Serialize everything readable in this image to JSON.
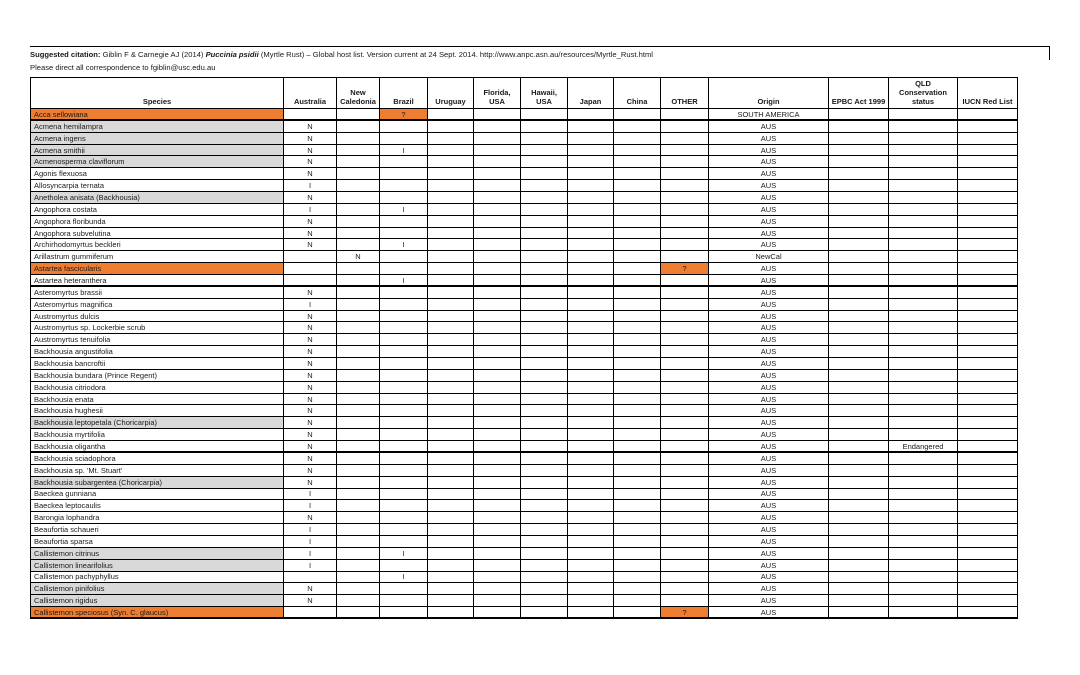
{
  "document": {
    "citation": {
      "prefix": "Suggested citation:",
      "authors": " Giblin F & Carnegie AJ (2014) ",
      "pathogen_name": "Puccinia psidii",
      "rest": " (Myrtle Rust) – Global host list. Version current at 24 Sept. 2014. http://www.anpc.asn.au/resources/Myrtle_Rust.html",
      "correspondence": "Please direct all correspondence to fgiblin@usc.edu.au"
    }
  },
  "colors": {
    "highlight_orange": "#ED7D31",
    "highlight_gray": "#D9D9D9"
  },
  "table": {
    "columns": [
      {
        "key": "species",
        "label": "Species"
      },
      {
        "key": "australia",
        "label": "Australia"
      },
      {
        "key": "new_caledonia",
        "label": "New Caledonia"
      },
      {
        "key": "brazil",
        "label": "Brazil"
      },
      {
        "key": "uruguay",
        "label": "Uruguay"
      },
      {
        "key": "florida_usa",
        "label": "Florida, USA"
      },
      {
        "key": "hawaii_usa",
        "label": "Hawaii, USA"
      },
      {
        "key": "japan",
        "label": "Japan"
      },
      {
        "key": "china",
        "label": "China"
      },
      {
        "key": "other",
        "label": "OTHER"
      },
      {
        "key": "origin",
        "label": "Origin"
      },
      {
        "key": "epbc",
        "label": "EPBC Act 1999"
      },
      {
        "key": "qld",
        "label": "QLD Conservation status"
      },
      {
        "key": "iucn",
        "label": "IUCN Red List"
      }
    ],
    "value_keys": [
      "australia",
      "new_caledonia",
      "brazil",
      "uruguay",
      "florida_usa",
      "hawaii_usa",
      "japan",
      "china",
      "other",
      "origin",
      "epbc",
      "qld",
      "iucn"
    ],
    "rows": [
      {
        "species": "Acca sellowiana",
        "bg": "orange",
        "values": {
          "brazil": "?",
          "origin": "SOUTH AMERICA"
        },
        "orange_cells": [
          "brazil"
        ],
        "thick_bottom": true
      },
      {
        "species": "Acmena hemilampra",
        "bg": "gray",
        "values": {
          "australia": "N",
          "origin": "AUS"
        }
      },
      {
        "species": "Acmena ingens",
        "bg": "gray",
        "values": {
          "australia": "N",
          "origin": "AUS"
        }
      },
      {
        "species": "Acmena smithii",
        "bg": "gray",
        "values": {
          "australia": "N",
          "brazil": "I",
          "origin": "AUS"
        }
      },
      {
        "species": "Acmenosperma claviflorum",
        "bg": "gray",
        "values": {
          "australia": "N",
          "origin": "AUS"
        }
      },
      {
        "species": "Agonis flexuosa",
        "bg": "white",
        "values": {
          "australia": "N",
          "origin": "AUS"
        }
      },
      {
        "species": "Allosyncarpia ternata",
        "bg": "white",
        "values": {
          "australia": "I",
          "origin": "AUS"
        }
      },
      {
        "species": "Anetholea anisata (Backhousia)",
        "bg": "gray",
        "values": {
          "australia": "N",
          "origin": "AUS"
        }
      },
      {
        "species": "Angophora costata",
        "bg": "white",
        "values": {
          "australia": "I",
          "brazil": "I",
          "origin": "AUS"
        }
      },
      {
        "species": "Angophora floribunda",
        "bg": "white",
        "values": {
          "australia": "N",
          "origin": "AUS"
        }
      },
      {
        "species": "Angophora subvelutina",
        "bg": "white",
        "values": {
          "australia": "N",
          "origin": "AUS"
        }
      },
      {
        "species": "Archirhodomyrtus beckleri",
        "bg": "white",
        "values": {
          "australia": "N",
          "brazil": "I",
          "origin": "AUS"
        }
      },
      {
        "species": "Arillastrum gummiferum",
        "bg": "white",
        "values": {
          "new_caledonia": "N",
          "origin": "NewCal"
        }
      },
      {
        "species": "Astartea fascicularis",
        "bg": "orange",
        "values": {
          "other": "?",
          "origin": "AUS"
        },
        "orange_cells": [
          "other"
        ]
      },
      {
        "species": "Astartea heteranthera",
        "bg": "white",
        "values": {
          "brazil": "I",
          "origin": "AUS"
        },
        "thick_bottom": true
      },
      {
        "species": "Asteromyrtus brassii",
        "bg": "white",
        "values": {
          "australia": "N",
          "origin": "AUS"
        }
      },
      {
        "species": "Asteromyrtus magnifica",
        "bg": "white",
        "values": {
          "australia": "I",
          "origin": "AUS"
        }
      },
      {
        "species": "Austromyrtus dulcis",
        "bg": "white",
        "values": {
          "australia": "N",
          "origin": "AUS"
        }
      },
      {
        "species": "Austromyrtus sp. Lockerbie scrub",
        "bg": "white",
        "values": {
          "australia": "N",
          "origin": "AUS"
        }
      },
      {
        "species": "Austromyrtus tenuifolia",
        "bg": "white",
        "values": {
          "australia": "N",
          "origin": "AUS"
        }
      },
      {
        "species": "Backhousia angustifolia",
        "bg": "white",
        "values": {
          "australia": "N",
          "origin": "AUS"
        }
      },
      {
        "species": "Backhousia bancroftii",
        "bg": "white",
        "values": {
          "australia": "N",
          "origin": "AUS"
        }
      },
      {
        "species": "Backhousia bundara (Prince Regent)",
        "bg": "white",
        "values": {
          "australia": "N",
          "origin": "AUS"
        }
      },
      {
        "species": "Backhousia citriodora",
        "bg": "white",
        "values": {
          "australia": "N",
          "origin": "AUS"
        }
      },
      {
        "species": "Backhousia enata",
        "bg": "white",
        "values": {
          "australia": "N",
          "origin": "AUS"
        }
      },
      {
        "species": "Backhousia hughesii",
        "bg": "white",
        "values": {
          "australia": "N",
          "origin": "AUS"
        }
      },
      {
        "species": "Backhousia leptopetala (Choricarpia)",
        "bg": "gray",
        "values": {
          "australia": "N",
          "origin": "AUS"
        }
      },
      {
        "species": "Backhousia myrtifolia",
        "bg": "white",
        "values": {
          "australia": "N",
          "origin": "AUS"
        }
      },
      {
        "species": "Backhousia oligantha",
        "bg": "white",
        "values": {
          "australia": "N",
          "origin": "AUS",
          "qld": "Endangered"
        },
        "thick_bottom": true
      },
      {
        "species": "Backhousia sciadophora",
        "bg": "white",
        "values": {
          "australia": "N",
          "origin": "AUS"
        }
      },
      {
        "species": "Backhousia sp. 'Mt. Stuart'",
        "bg": "white",
        "values": {
          "australia": "N",
          "origin": "AUS"
        }
      },
      {
        "species": "Backhousia subargentea (Choricarpia)",
        "bg": "gray",
        "values": {
          "australia": "N",
          "origin": "AUS"
        }
      },
      {
        "species": "Baeckea gunniana",
        "bg": "white",
        "values": {
          "australia": "I",
          "origin": "AUS"
        }
      },
      {
        "species": "Baeckea leptocaulis",
        "bg": "white",
        "values": {
          "australia": "I",
          "origin": "AUS"
        }
      },
      {
        "species": "Barongia lophandra",
        "bg": "white",
        "values": {
          "australia": "N",
          "origin": "AUS"
        }
      },
      {
        "species": "Beaufortia schaueri",
        "bg": "white",
        "values": {
          "australia": "I",
          "origin": "AUS"
        }
      },
      {
        "species": "Beaufortia sparsa",
        "bg": "white",
        "values": {
          "australia": "I",
          "origin": "AUS"
        }
      },
      {
        "species": "Callistemon citrinus",
        "bg": "gray",
        "values": {
          "australia": "I",
          "brazil": "I",
          "origin": "AUS"
        }
      },
      {
        "species": "Callistemon linearifolius",
        "bg": "gray",
        "values": {
          "australia": "I",
          "origin": "AUS"
        }
      },
      {
        "species": "Callistemon pachyphyllus",
        "bg": "white",
        "values": {
          "brazil": "I",
          "origin": "AUS"
        }
      },
      {
        "species": "Callistemon pinifolius",
        "bg": "gray",
        "values": {
          "australia": "N",
          "origin": "AUS"
        }
      },
      {
        "species": "Callistemon rigidus",
        "bg": "gray",
        "values": {
          "australia": "N",
          "origin": "AUS"
        }
      },
      {
        "species": "Callistemon speciosus (Syn. C. glaucus)",
        "bg": "orange",
        "values": {
          "other": "?",
          "origin": "AUS"
        },
        "orange_cells": [
          "other"
        ],
        "thick_bottom": true
      }
    ]
  }
}
